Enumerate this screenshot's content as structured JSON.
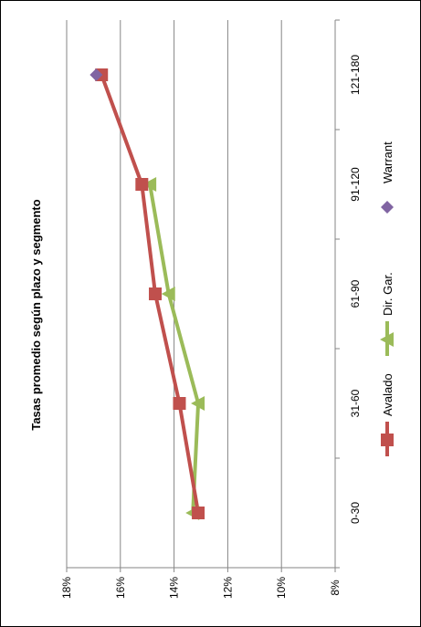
{
  "chart_data": {
    "type": "line",
    "orientation": "rotated-90-clockwise",
    "title": "Tasas promedio según plazo y segmento",
    "categories": [
      "0-30",
      "31-60",
      "61-90",
      "91-120",
      "121-180"
    ],
    "y_ticks": [
      "8%",
      "10%",
      "12%",
      "14%",
      "16%",
      "18%"
    ],
    "ylim": [
      8,
      18
    ],
    "grid": true,
    "legend_position": "bottom",
    "series": [
      {
        "name": "Avalado",
        "color": "#c0504d",
        "marker": "square",
        "values": [
          13.1,
          13.8,
          14.7,
          15.2,
          16.7
        ]
      },
      {
        "name": "Dir. Gar.",
        "color": "#9bbb59",
        "marker": "triangle",
        "values": [
          13.3,
          13.1,
          14.2,
          14.9,
          null
        ]
      },
      {
        "name": "Warrant",
        "color": "#8064a2",
        "marker": "diamond",
        "values": [
          null,
          null,
          null,
          null,
          16.9
        ]
      }
    ]
  }
}
